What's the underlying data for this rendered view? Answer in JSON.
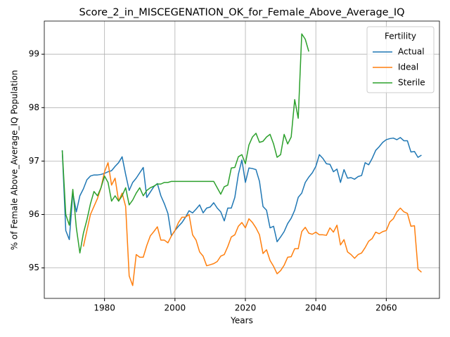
{
  "chart_data": {
    "type": "line",
    "title": "Score_2_in_MISCEGENATION_OK_for_Female_Above_Average_IQ",
    "x_label": "Years",
    "y_label": "% of Female Above_Average_IQ Population",
    "legend_title": "Fertility",
    "legend_position": "upper right",
    "grid": true,
    "x": [
      1968,
      1969,
      1970,
      1971,
      1972,
      1973,
      1974,
      1975,
      1976,
      1977,
      1978,
      1979,
      1980,
      1981,
      1982,
      1983,
      1984,
      1985,
      1986,
      1987,
      1988,
      1989,
      1990,
      1991,
      1992,
      1993,
      1994,
      1995,
      1996,
      1997,
      1998,
      1999,
      2000,
      2001,
      2002,
      2003,
      2004,
      2005,
      2006,
      2007,
      2008,
      2009,
      2010,
      2011,
      2012,
      2013,
      2014,
      2015,
      2016,
      2017,
      2018,
      2019,
      2020,
      2021,
      2022,
      2023,
      2024,
      2025,
      2026,
      2027,
      2028,
      2029,
      2030,
      2031,
      2032,
      2033,
      2034,
      2035,
      2036,
      2037,
      2038,
      2039,
      2040,
      2041,
      2042,
      2043,
      2044,
      2045,
      2046,
      2047,
      2048,
      2049,
      2050,
      2051,
      2052,
      2053,
      2054,
      2055,
      2056,
      2057,
      2058,
      2059,
      2060,
      2061,
      2062,
      2063,
      2064,
      2065,
      2066,
      2067,
      2068,
      2069,
      2070
    ],
    "series": [
      {
        "name": "Actual",
        "color": "#1f77b4",
        "values": [
          97.2,
          95.7,
          95.53,
          96.4,
          96.05,
          96.35,
          96.48,
          96.65,
          96.72,
          96.74,
          96.74,
          96.75,
          96.77,
          96.8,
          96.82,
          96.9,
          96.97,
          97.08,
          96.75,
          96.45,
          96.6,
          96.68,
          96.78,
          96.88,
          96.32,
          96.42,
          96.52,
          96.58,
          96.35,
          96.2,
          96.02,
          95.6,
          95.7,
          95.78,
          95.85,
          95.95,
          96.07,
          96.03,
          96.1,
          96.18,
          96.03,
          96.12,
          96.14,
          96.22,
          96.12,
          96.05,
          95.88,
          96.12,
          96.12,
          96.32,
          96.75,
          97.02,
          96.6,
          96.87,
          96.86,
          96.84,
          96.62,
          96.15,
          96.08,
          95.75,
          95.78,
          95.49,
          95.58,
          95.68,
          95.83,
          95.93,
          96.08,
          96.32,
          96.4,
          96.6,
          96.7,
          96.78,
          96.9,
          97.12,
          97.05,
          96.95,
          96.94,
          96.8,
          96.85,
          96.6,
          96.84,
          96.68,
          96.69,
          96.66,
          96.71,
          96.73,
          96.97,
          96.93,
          97.05,
          97.2,
          97.27,
          97.35,
          97.4,
          97.42,
          97.43,
          97.4,
          97.44,
          97.38,
          97.38,
          97.17,
          97.18,
          97.07,
          97.11
        ]
      },
      {
        "name": "Ideal",
        "color": "#ff7f0e",
        "values": [
          null,
          null,
          null,
          null,
          null,
          null,
          95.4,
          95.7,
          96.0,
          96.15,
          96.3,
          96.5,
          96.8,
          96.97,
          96.55,
          96.68,
          96.25,
          96.4,
          96.15,
          94.85,
          94.67,
          95.25,
          95.2,
          95.2,
          95.42,
          95.6,
          95.68,
          95.77,
          95.52,
          95.52,
          95.47,
          95.6,
          95.7,
          95.85,
          95.95,
          95.95,
          96.0,
          95.62,
          95.52,
          95.3,
          95.22,
          95.04,
          95.06,
          95.08,
          95.12,
          95.22,
          95.25,
          95.4,
          95.58,
          95.62,
          95.78,
          95.85,
          95.75,
          95.92,
          95.85,
          95.75,
          95.62,
          95.27,
          95.34,
          95.14,
          95.03,
          94.89,
          94.95,
          95.05,
          95.2,
          95.21,
          95.36,
          95.36,
          95.68,
          95.76,
          95.65,
          95.63,
          95.67,
          95.62,
          95.62,
          95.61,
          95.75,
          95.67,
          95.8,
          95.43,
          95.53,
          95.3,
          95.25,
          95.18,
          95.25,
          95.28,
          95.38,
          95.5,
          95.55,
          95.67,
          95.64,
          95.68,
          95.7,
          95.86,
          95.92,
          96.05,
          96.12,
          96.05,
          96.02,
          95.78,
          95.79,
          94.98,
          94.92
        ]
      },
      {
        "name": "Sterile",
        "color": "#2ca02c",
        "values": [
          97.2,
          96.0,
          95.8,
          96.47,
          95.75,
          95.28,
          95.65,
          95.9,
          96.2,
          96.43,
          96.35,
          96.5,
          96.72,
          96.6,
          96.25,
          96.35,
          96.25,
          96.35,
          96.5,
          96.18,
          96.27,
          96.4,
          96.5,
          96.35,
          96.45,
          96.5,
          96.53,
          96.57,
          96.57,
          96.6,
          96.6,
          96.62,
          96.62,
          96.62,
          96.62,
          96.62,
          96.62,
          96.62,
          96.62,
          96.62,
          96.62,
          96.62,
          96.62,
          96.62,
          96.5,
          96.38,
          96.52,
          96.55,
          96.87,
          96.88,
          97.08,
          97.12,
          96.95,
          97.3,
          97.45,
          97.52,
          97.35,
          97.37,
          97.45,
          97.5,
          97.32,
          97.07,
          97.12,
          97.5,
          97.32,
          97.45,
          98.15,
          97.8,
          99.38,
          99.28,
          99.05,
          null,
          null,
          null,
          null,
          null,
          null,
          null,
          null,
          null,
          null,
          null,
          null,
          null,
          null,
          null,
          null,
          null,
          null,
          null,
          null,
          null,
          null,
          null,
          null,
          null,
          null,
          null,
          null,
          null,
          null,
          null,
          null
        ]
      }
    ],
    "xlim": [
      1962.9,
      2075.1
    ],
    "xticks": [
      1980,
      2000,
      2020,
      2040,
      2060
    ],
    "ylim": [
      94.43,
      99.62
    ],
    "yticks": [
      95,
      96,
      97,
      98,
      99
    ]
  }
}
